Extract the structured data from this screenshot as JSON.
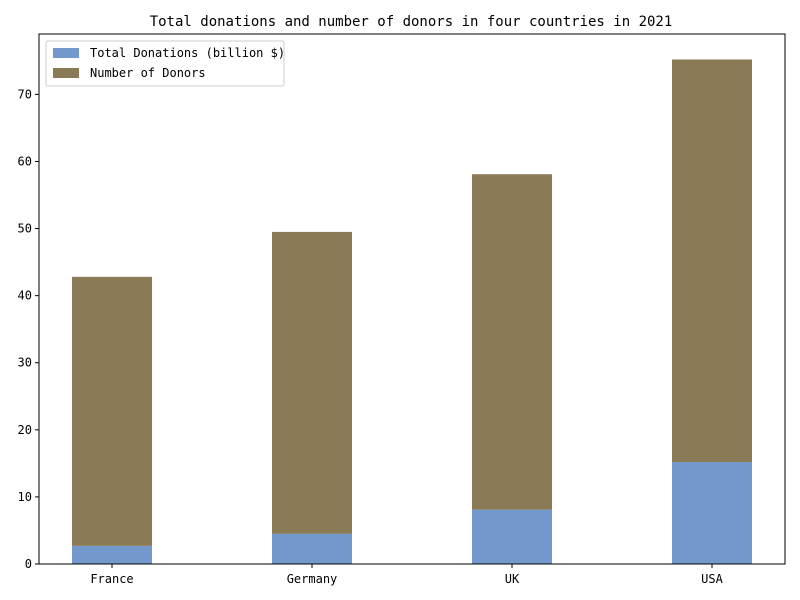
{
  "chart_data": {
    "type": "bar",
    "stacked": true,
    "title": "Total donations and number of donors in four countries in 2021",
    "categories": [
      "France",
      "Germany",
      "UK",
      "USA"
    ],
    "series": [
      {
        "name": "Total Donations (billion $)",
        "values": [
          2.7,
          4.5,
          8.1,
          15.2
        ],
        "color": "#7398cc"
      },
      {
        "name": "Number of Donors",
        "values": [
          40.1,
          45.0,
          50.0,
          60.0
        ],
        "color": "#8a7a55"
      }
    ],
    "yticks": [
      "0",
      "10",
      "20",
      "30",
      "40",
      "50",
      "60",
      "70"
    ],
    "ylim": [
      0,
      79
    ],
    "legend_position": "top-left",
    "grid": false
  }
}
